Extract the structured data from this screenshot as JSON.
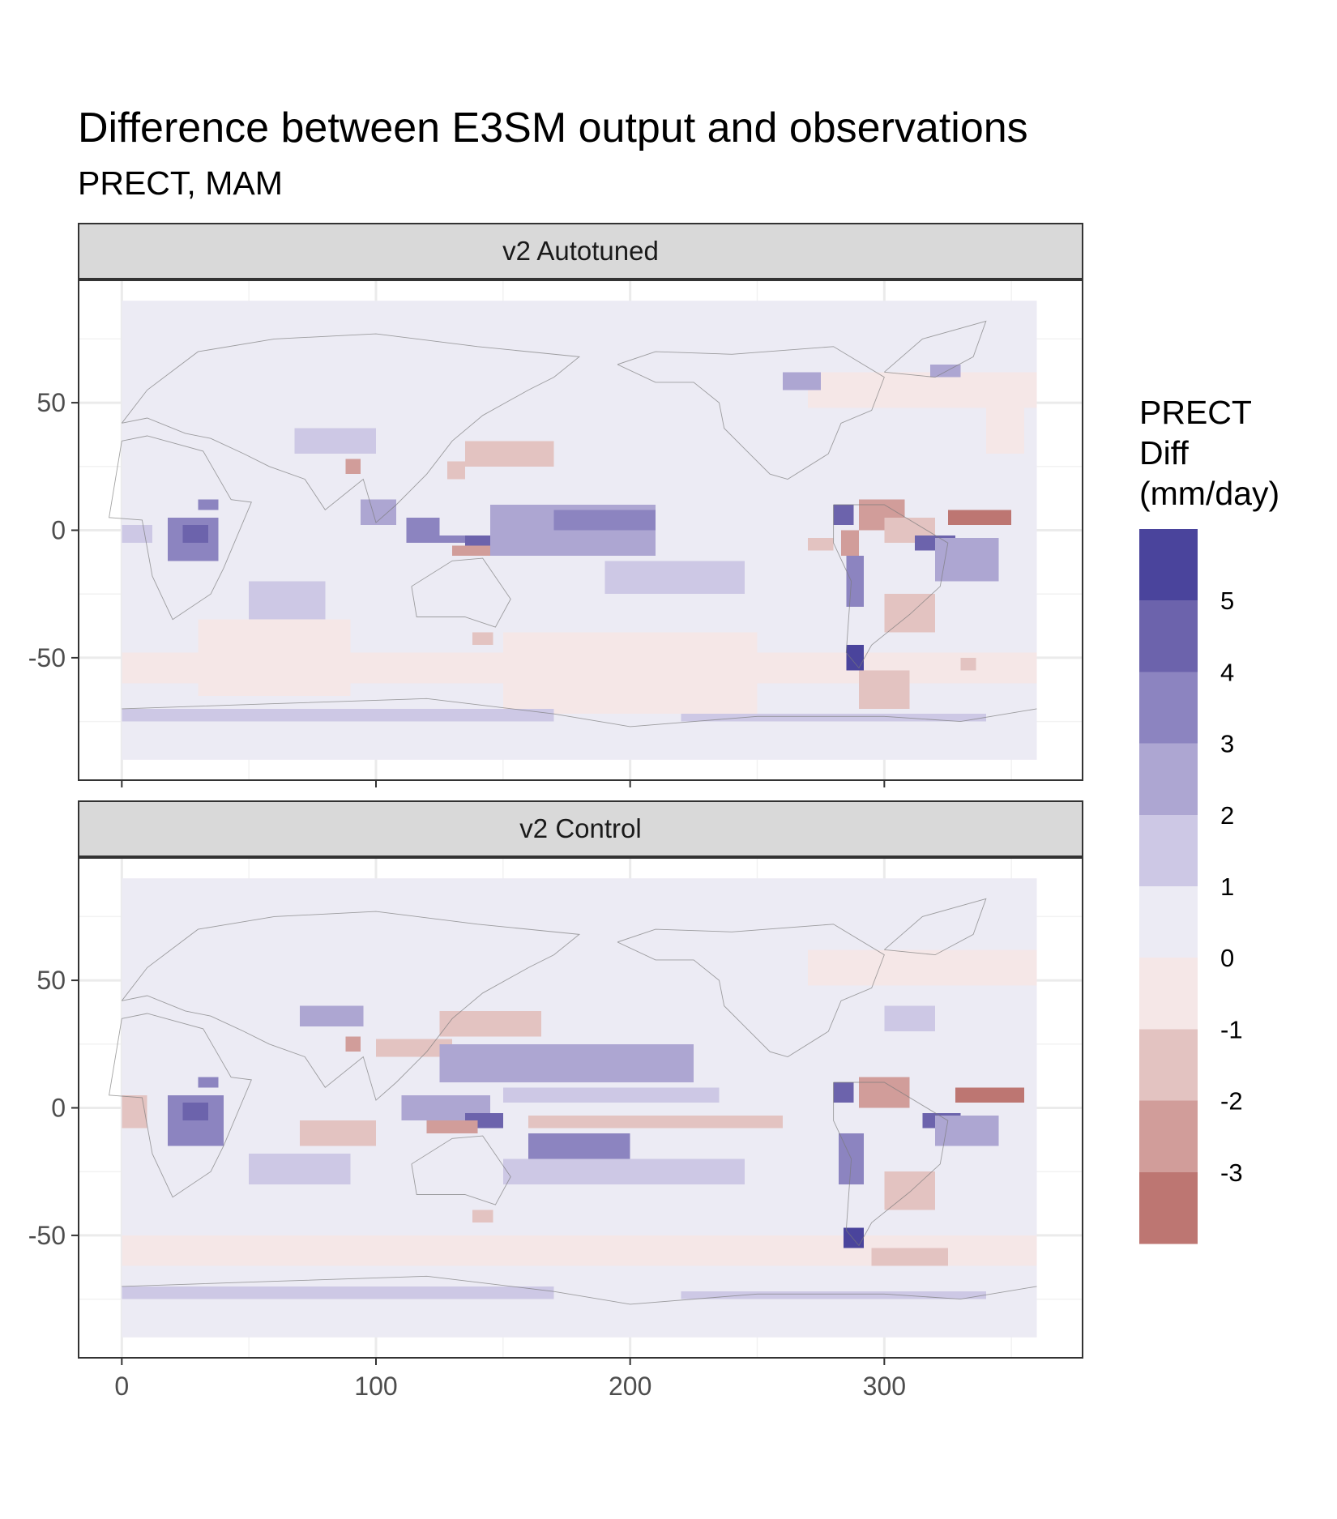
{
  "title": "Difference between E3SM output and observations",
  "subtitle": "PRECT, MAM",
  "legend": {
    "title_lines": [
      "PRECT",
      "Diff",
      "(mm/day)"
    ],
    "bins": [
      {
        "from": 5,
        "to": 6,
        "color": "#4a449c"
      },
      {
        "from": 4,
        "to": 5,
        "color": "#6c63ac"
      },
      {
        "from": 3,
        "to": 4,
        "color": "#8c84c0"
      },
      {
        "from": 2,
        "to": 3,
        "color": "#ada6d2"
      },
      {
        "from": 1,
        "to": 2,
        "color": "#cdc8e5"
      },
      {
        "from": 0,
        "to": 1,
        "color": "#ecebf4"
      },
      {
        "from": -1,
        "to": 0,
        "color": "#f5e7e7"
      },
      {
        "from": -2,
        "to": -1,
        "color": "#e3c3c1"
      },
      {
        "from": -3,
        "to": -2,
        "color": "#d19d9a"
      },
      {
        "from": -4,
        "to": -3,
        "color": "#bd7672"
      }
    ],
    "labels": [
      "5",
      "4",
      "3",
      "2",
      "1",
      "0",
      "-1",
      "-2",
      "-3"
    ]
  },
  "chart_data": {
    "type": "heatmap",
    "title": "Difference between E3SM output and observations",
    "subtitle": "PRECT, MAM",
    "xlabel": "",
    "ylabel": "",
    "xlim": [
      -17,
      378
    ],
    "ylim": [
      -98,
      98
    ],
    "data_extent": {
      "x": [
        0,
        360
      ],
      "y": [
        -90,
        90
      ]
    },
    "x_ticks": [
      0,
      100,
      200,
      300
    ],
    "y_ticks": [
      50,
      0,
      -50
    ],
    "x_tick_labels": [
      "0",
      "100",
      "200",
      "300"
    ],
    "y_tick_labels": [
      "50",
      "0",
      "-50"
    ],
    "grid": true,
    "background_value": "0 to 1",
    "panels": [
      {
        "name": "v2 Autotuned",
        "anomalies": [
          {
            "x": [
              340,
              355
            ],
            "y": [
              30,
              50
            ],
            "value": -0.5
          },
          {
            "x": [
              30,
              90
            ],
            "y": [
              -65,
              -35
            ],
            "value": -0.5
          },
          {
            "x": [
              150,
              250
            ],
            "y": [
              -72,
              -40
            ],
            "value": -0.5
          },
          {
            "x": [
              0,
              360
            ],
            "y": [
              -60,
              -48
            ],
            "value": -0.5
          },
          {
            "x": [
              270,
              360
            ],
            "y": [
              48,
              62
            ],
            "value": -0.5
          },
          {
            "x": [
              18,
              38
            ],
            "y": [
              -12,
              5
            ],
            "value": 3
          },
          {
            "x": [
              24,
              34
            ],
            "y": [
              -5,
              2
            ],
            "value": 4
          },
          {
            "x": [
              30,
              38
            ],
            "y": [
              8,
              12
            ],
            "value": 3
          },
          {
            "x": [
              0,
              12
            ],
            "y": [
              -5,
              2
            ],
            "value": 1.5
          },
          {
            "x": [
              50,
              80
            ],
            "y": [
              -35,
              -20
            ],
            "value": 1.5
          },
          {
            "x": [
              68,
              100
            ],
            "y": [
              30,
              40
            ],
            "value": 1.5
          },
          {
            "x": [
              88,
              94
            ],
            "y": [
              22,
              28
            ],
            "value": -2.5
          },
          {
            "x": [
              94,
              108
            ],
            "y": [
              2,
              12
            ],
            "value": 2
          },
          {
            "x": [
              112,
              125
            ],
            "y": [
              -5,
              5
            ],
            "value": 3
          },
          {
            "x": [
              125,
              140
            ],
            "y": [
              -5,
              -2
            ],
            "value": 3
          },
          {
            "x": [
              135,
              150
            ],
            "y": [
              -8,
              -2
            ],
            "value": 4.5
          },
          {
            "x": [
              130,
              145
            ],
            "y": [
              -10,
              -6
            ],
            "value": -2.5
          },
          {
            "x": [
              128,
              135
            ],
            "y": [
              20,
              27
            ],
            "value": -1.5
          },
          {
            "x": [
              135,
              170
            ],
            "y": [
              25,
              35
            ],
            "value": -2
          },
          {
            "x": [
              145,
              210
            ],
            "y": [
              -10,
              10
            ],
            "value": 2
          },
          {
            "x": [
              170,
              210
            ],
            "y": [
              0,
              8
            ],
            "value": 3
          },
          {
            "x": [
              190,
              245
            ],
            "y": [
              -25,
              -12
            ],
            "value": 1.5
          },
          {
            "x": [
              138,
              146
            ],
            "y": [
              -45,
              -40
            ],
            "value": -2
          },
          {
            "x": [
              260,
              275
            ],
            "y": [
              55,
              62
            ],
            "value": 2
          },
          {
            "x": [
              270,
              280
            ],
            "y": [
              -8,
              -3
            ],
            "value": -1.5
          },
          {
            "x": [
              280,
              288
            ],
            "y": [
              2,
              10
            ],
            "value": 4.5
          },
          {
            "x": [
              290,
              308
            ],
            "y": [
              0,
              12
            ],
            "value": -3
          },
          {
            "x": [
              300,
              320
            ],
            "y": [
              -5,
              5
            ],
            "value": -2
          },
          {
            "x": [
              312,
              328
            ],
            "y": [
              -8,
              -2
            ],
            "value": 4.5
          },
          {
            "x": [
              320,
              345
            ],
            "y": [
              -20,
              -3
            ],
            "value": 2
          },
          {
            "x": [
              325,
              350
            ],
            "y": [
              2,
              8
            ],
            "value": -3.5
          },
          {
            "x": [
              285,
              292
            ],
            "y": [
              -30,
              -10
            ],
            "value": 3.5
          },
          {
            "x": [
              283,
              290
            ],
            "y": [
              -10,
              0
            ],
            "value": -2.5
          },
          {
            "x": [
              285,
              292
            ],
            "y": [
              -55,
              -45
            ],
            "value": 5.5
          },
          {
            "x": [
              290,
              310
            ],
            "y": [
              -70,
              -55
            ],
            "value": -1.5
          },
          {
            "x": [
              300,
              320
            ],
            "y": [
              -40,
              -25
            ],
            "value": -1.5
          },
          {
            "x": [
              330,
              336
            ],
            "y": [
              -55,
              -50
            ],
            "value": -2
          },
          {
            "x": [
              318,
              330
            ],
            "y": [
              60,
              65
            ],
            "value": 2
          },
          {
            "x": [
              0,
              170
            ],
            "y": [
              -75,
              -70
            ],
            "value": 1.5
          },
          {
            "x": [
              220,
              340
            ],
            "y": [
              -75,
              -72
            ],
            "value": 1.5
          }
        ]
      },
      {
        "name": "v2 Control",
        "anomalies": [
          {
            "x": [
              0,
              10
            ],
            "y": [
              -8,
              5
            ],
            "value": -1.5
          },
          {
            "x": [
              18,
              40
            ],
            "y": [
              -15,
              5
            ],
            "value": 3
          },
          {
            "x": [
              24,
              34
            ],
            "y": [
              -5,
              2
            ],
            "value": 4.5
          },
          {
            "x": [
              30,
              38
            ],
            "y": [
              8,
              12
            ],
            "value": 3
          },
          {
            "x": [
              50,
              90
            ],
            "y": [
              -30,
              -18
            ],
            "value": 1.5
          },
          {
            "x": [
              70,
              100
            ],
            "y": [
              -15,
              -5
            ],
            "value": -1.5
          },
          {
            "x": [
              70,
              95
            ],
            "y": [
              32,
              40
            ],
            "value": 2
          },
          {
            "x": [
              88,
              94
            ],
            "y": [
              22,
              28
            ],
            "value": -2.5
          },
          {
            "x": [
              100,
              130
            ],
            "y": [
              20,
              27
            ],
            "value": -2
          },
          {
            "x": [
              125,
              165
            ],
            "y": [
              28,
              38
            ],
            "value": -2
          },
          {
            "x": [
              110,
              145
            ],
            "y": [
              -5,
              5
            ],
            "value": 2
          },
          {
            "x": [
              135,
              150
            ],
            "y": [
              -8,
              -2
            ],
            "value": 4.5
          },
          {
            "x": [
              120,
              140
            ],
            "y": [
              -10,
              -5
            ],
            "value": -2.5
          },
          {
            "x": [
              125,
              225
            ],
            "y": [
              10,
              25
            ],
            "value": 2
          },
          {
            "x": [
              150,
              235
            ],
            "y": [
              2,
              8
            ],
            "value": 1.5
          },
          {
            "x": [
              160,
              200
            ],
            "y": [
              -20,
              -10
            ],
            "value": 3
          },
          {
            "x": [
              150,
              245
            ],
            "y": [
              -30,
              -20
            ],
            "value": 1.5
          },
          {
            "x": [
              160,
              260
            ],
            "y": [
              -8,
              -3
            ],
            "value": -1.5
          },
          {
            "x": [
              138,
              146
            ],
            "y": [
              -45,
              -40
            ],
            "value": -2
          },
          {
            "x": [
              0,
              360
            ],
            "y": [
              -62,
              -50
            ],
            "value": -0.5
          },
          {
            "x": [
              270,
              360
            ],
            "y": [
              48,
              62
            ],
            "value": -0.5
          },
          {
            "x": [
              300,
              320
            ],
            "y": [
              30,
              40
            ],
            "value": 1.5
          },
          {
            "x": [
              280,
              288
            ],
            "y": [
              2,
              10
            ],
            "value": 4.5
          },
          {
            "x": [
              290,
              310
            ],
            "y": [
              0,
              12
            ],
            "value": -3
          },
          {
            "x": [
              315,
              330
            ],
            "y": [
              -8,
              -2
            ],
            "value": 4.5
          },
          {
            "x": [
              320,
              345
            ],
            "y": [
              -15,
              -3
            ],
            "value": 2
          },
          {
            "x": [
              328,
              355
            ],
            "y": [
              2,
              8
            ],
            "value": -3.5
          },
          {
            "x": [
              282,
              292
            ],
            "y": [
              -30,
              -10
            ],
            "value": 3.5
          },
          {
            "x": [
              284,
              292
            ],
            "y": [
              -55,
              -47
            ],
            "value": 5.5
          },
          {
            "x": [
              295,
              325
            ],
            "y": [
              -62,
              -55
            ],
            "value": -2
          },
          {
            "x": [
              300,
              320
            ],
            "y": [
              -40,
              -25
            ],
            "value": -1.5
          },
          {
            "x": [
              0,
              170
            ],
            "y": [
              -75,
              -70
            ],
            "value": 1.5
          },
          {
            "x": [
              220,
              340
            ],
            "y": [
              -75,
              -72
            ],
            "value": 1.5
          }
        ]
      }
    ]
  }
}
